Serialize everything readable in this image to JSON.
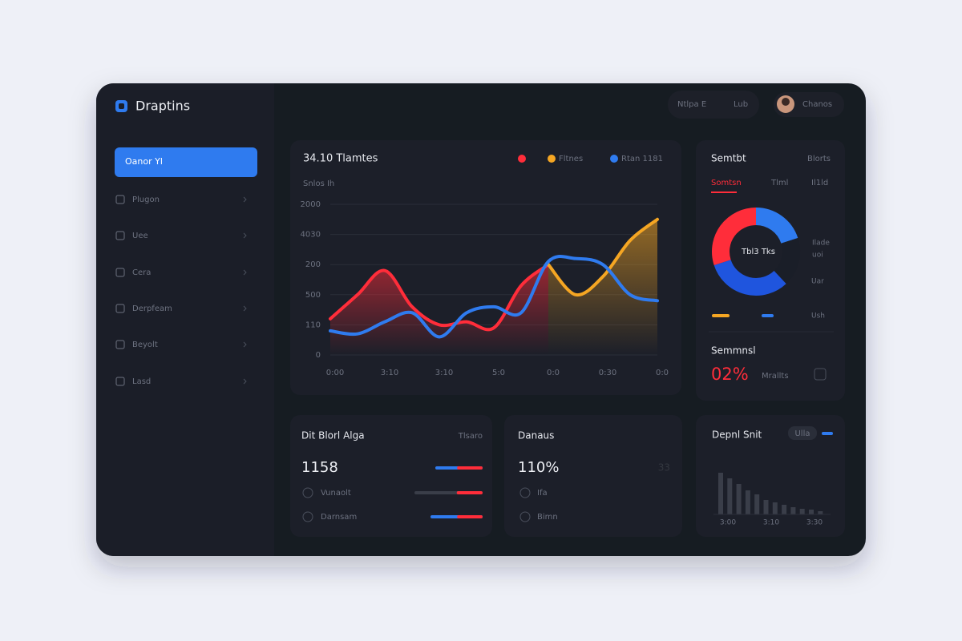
{
  "brand": "Draptins",
  "header": {
    "search": "Ntlpa E",
    "link": "Lub",
    "user": "Chanos"
  },
  "sidebar": {
    "items": [
      "Oanor Yl",
      "Plugon",
      "Uee",
      "Cera",
      "Derpfeam",
      "Beyolt",
      "Lasd"
    ]
  },
  "main_chart": {
    "type": "line",
    "title": "34.10 Tlamtes",
    "subtitle": "Snlos Ih",
    "categories": [
      "0:00",
      null,
      "3:10",
      null,
      "3:10",
      null,
      "5:0",
      null,
      "0:0",
      null,
      "0:30",
      null,
      "0:0"
    ],
    "ylim": [
      0,
      5
    ],
    "yticks": [
      {
        "value": 5,
        "label": "2000"
      },
      {
        "value": 4,
        "label": "4030"
      },
      {
        "value": 3,
        "label": "200"
      },
      {
        "value": 2,
        "label": "500"
      },
      {
        "value": 1,
        "label": "110"
      },
      0
    ],
    "grid": true,
    "series": [
      {
        "color": "#ff2d3a",
        "values": [
          1.2,
          2.0,
          2.8,
          1.6,
          1.0,
          1.1,
          0.9,
          2.3,
          3.0,
          null,
          null,
          null,
          null
        ]
      },
      {
        "name": "Fltnes",
        "color": "#f5a623",
        "values": [
          null,
          null,
          null,
          null,
          null,
          null,
          null,
          null,
          3.0,
          2.0,
          2.6,
          3.8,
          4.5
        ]
      },
      {
        "name": "Rtan 1181",
        "color": "#2f7bef",
        "values": [
          0.8,
          0.7,
          1.1,
          1.4,
          0.6,
          1.4,
          1.6,
          1.4,
          3.1,
          3.2,
          3.0,
          2.0,
          1.8
        ]
      }
    ]
  },
  "side_panel": {
    "title": "Semtbt",
    "action": "Blorts",
    "tabs": [
      "Somtsn",
      "Tlml",
      "Il1ld"
    ],
    "donut": {
      "type": "pie",
      "center": "Tbl3 Tks",
      "segments": [
        {
          "color": "#2f7bef",
          "value": 20
        },
        {
          "color": "#1a1e28",
          "value": 18
        },
        {
          "color": "#1f55de",
          "value": 32
        },
        {
          "color": "#ff2d3a",
          "value": 30
        }
      ]
    },
    "labels": [
      "Ilade",
      "uoi",
      "Uar",
      "Ush"
    ],
    "stat_label": "Semmnsl",
    "stat_value": "02%",
    "stat_note": "Mrallts"
  },
  "cards": [
    {
      "title": "Dit Blorl Alga",
      "action": "Tlsaro",
      "value": "1158",
      "rows": [
        "Vunaolt",
        "Darnsam"
      ],
      "progress": [
        54,
        38,
        49
      ]
    },
    {
      "title": "Danaus",
      "value": "110%",
      "side": "33",
      "rows": [
        "Ifa",
        "Bimn"
      ]
    }
  ],
  "bar_card": {
    "type": "bar",
    "title": "Depnl Snit",
    "badge": "Ulla",
    "ylim": [
      0,
      60
    ],
    "values": [
      52,
      45,
      38,
      30,
      25,
      18,
      15,
      12,
      9,
      7,
      6,
      4
    ],
    "labels": [
      "3:00",
      "3:10",
      "3:30"
    ]
  }
}
